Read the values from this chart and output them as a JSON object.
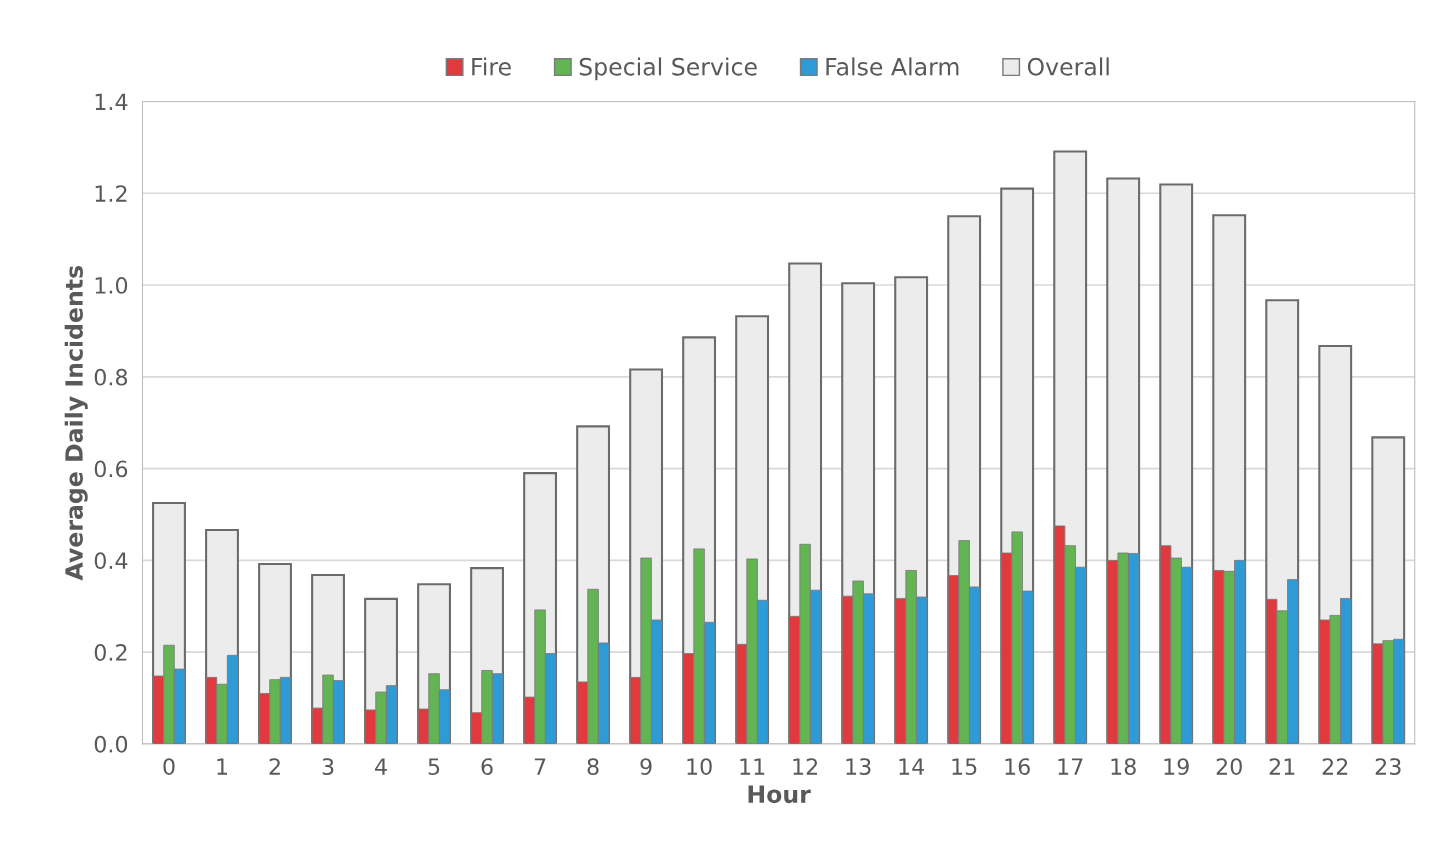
{
  "chart_data": {
    "type": "bar",
    "xlabel": "Hour",
    "ylabel": "Average Daily Incidents",
    "categories": [
      "0",
      "1",
      "2",
      "3",
      "4",
      "5",
      "6",
      "7",
      "8",
      "9",
      "10",
      "11",
      "12",
      "13",
      "14",
      "15",
      "16",
      "17",
      "18",
      "19",
      "20",
      "21",
      "22",
      "23"
    ],
    "series": [
      {
        "name": "Fire",
        "color": "#e0393e",
        "values": [
          0.148,
          0.145,
          0.11,
          0.078,
          0.074,
          0.076,
          0.068,
          0.102,
          0.135,
          0.145,
          0.197,
          0.217,
          0.278,
          0.322,
          0.317,
          0.367,
          0.416,
          0.475,
          0.4,
          0.432,
          0.378,
          0.315,
          0.27,
          0.218
        ]
      },
      {
        "name": "Special Service",
        "color": "#63b553",
        "values": [
          0.215,
          0.13,
          0.14,
          0.15,
          0.113,
          0.153,
          0.16,
          0.292,
          0.337,
          0.405,
          0.425,
          0.403,
          0.435,
          0.355,
          0.378,
          0.443,
          0.462,
          0.432,
          0.416,
          0.405,
          0.376,
          0.29,
          0.28,
          0.225
        ]
      },
      {
        "name": "False Alarm",
        "color": "#2e9ad6",
        "values": [
          0.163,
          0.193,
          0.145,
          0.138,
          0.127,
          0.118,
          0.153,
          0.197,
          0.22,
          0.27,
          0.265,
          0.313,
          0.335,
          0.327,
          0.32,
          0.342,
          0.333,
          0.385,
          0.415,
          0.385,
          0.4,
          0.358,
          0.317,
          0.228
        ]
      },
      {
        "name": "Overall",
        "color": "#ececec",
        "values": [
          0.525,
          0.466,
          0.392,
          0.368,
          0.316,
          0.348,
          0.383,
          0.59,
          0.692,
          0.816,
          0.886,
          0.932,
          1.047,
          1.004,
          1.017,
          1.15,
          1.21,
          1.291,
          1.232,
          1.219,
          1.152,
          0.967,
          0.867,
          0.668
        ]
      }
    ],
    "ylim": [
      0,
      1.4
    ],
    "yticks": [
      {
        "value": 0,
        "label": "0.0"
      },
      {
        "value": 0.2,
        "label": "0.2"
      },
      {
        "value": 0.4,
        "label": "0.4"
      },
      {
        "value": 0.6,
        "label": "0.6"
      },
      {
        "value": 0.8,
        "label": "0.8"
      },
      {
        "value": 1.0,
        "label": "1.0"
      },
      {
        "value": 1.2,
        "label": "1.2"
      },
      {
        "value": 1.4,
        "label": "1.4"
      }
    ],
    "grid": "y",
    "legend": "top"
  }
}
